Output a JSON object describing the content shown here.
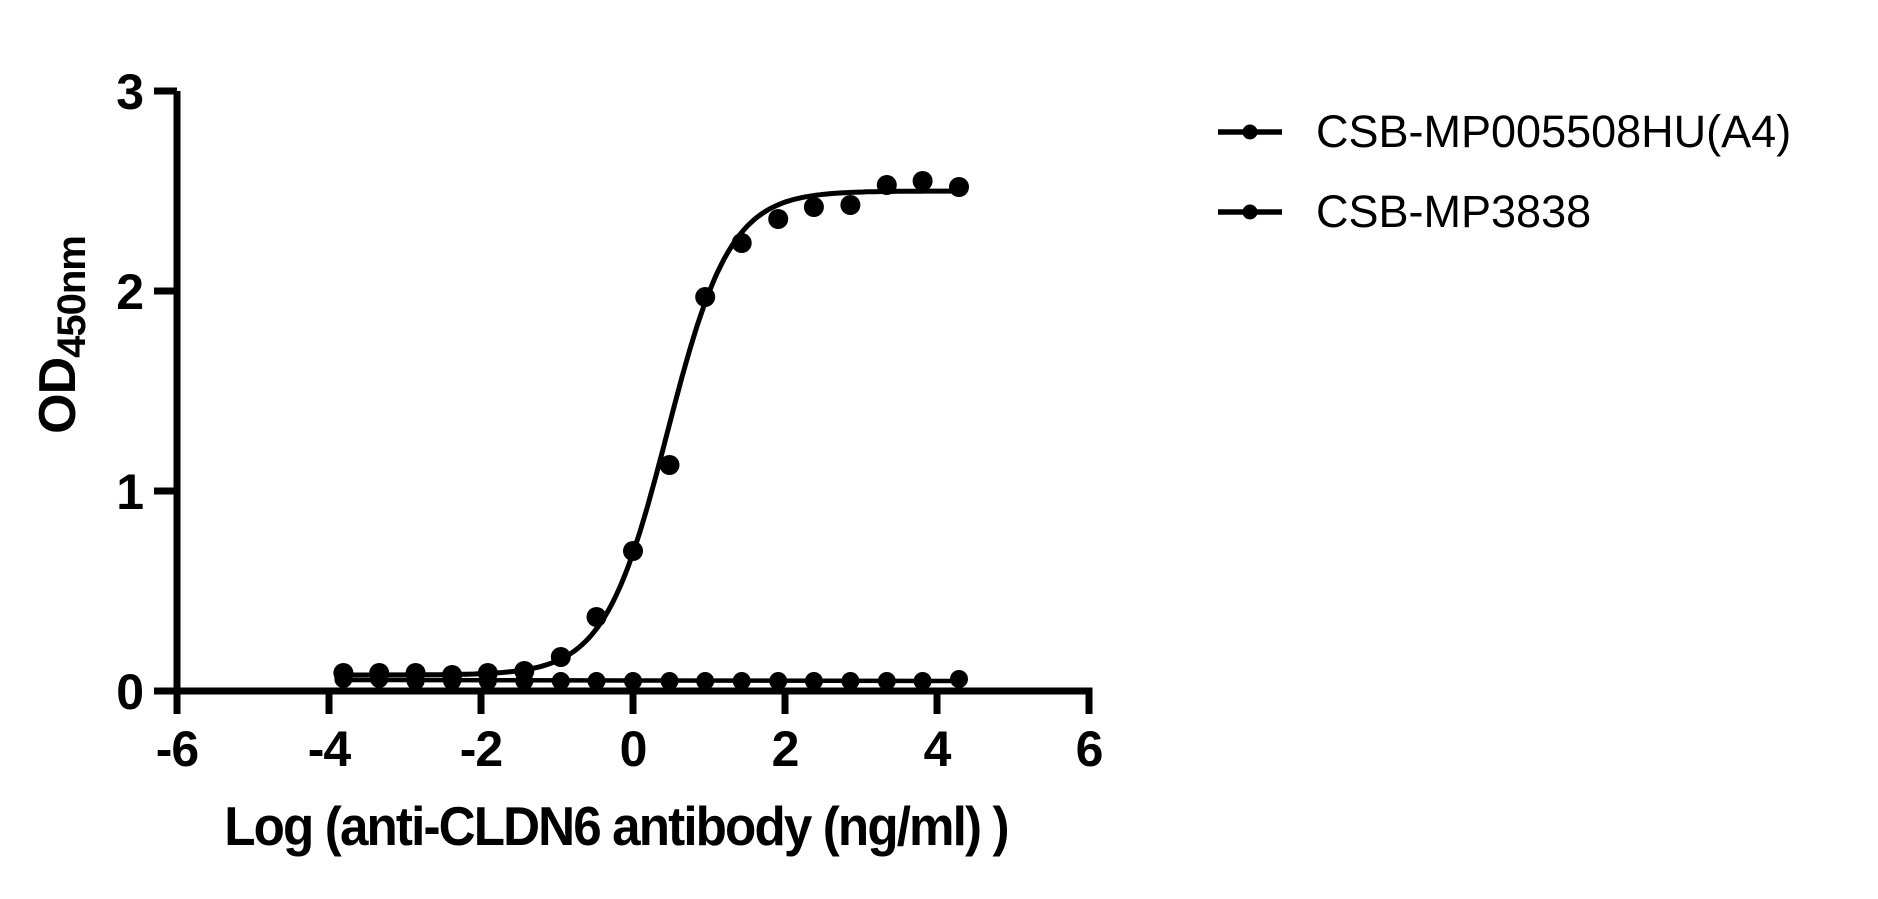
{
  "figure": {
    "background_color": "#ffffff",
    "ink_color": "#000000"
  },
  "chart_data": {
    "type": "scatter",
    "title": "",
    "xlabel": "Log (anti-CLDN6 antibody (ng/ml) )",
    "ylabel": "OD",
    "ylabel_subscript": "450nm",
    "xlim": [
      -6,
      6
    ],
    "ylim": [
      0,
      3
    ],
    "x_ticks": [
      "-6",
      "-4",
      "-2",
      "0",
      "2",
      "4",
      "6"
    ],
    "y_ticks": [
      "0",
      "1",
      "2",
      "3"
    ],
    "grid": false,
    "legend_position": "outside-top-right",
    "series": [
      {
        "name": "CSB-MP005508HU(A4)",
        "color": "#000000",
        "marker": "filled-circle",
        "x": [
          -3.81,
          -3.34,
          -2.86,
          -2.38,
          -1.91,
          -1.43,
          -0.95,
          -0.48,
          0.0,
          0.48,
          0.95,
          1.43,
          1.91,
          2.38,
          2.86,
          3.34,
          3.81,
          4.29
        ],
        "y": [
          0.09,
          0.09,
          0.09,
          0.08,
          0.09,
          0.1,
          0.17,
          0.37,
          0.7,
          1.13,
          1.97,
          2.24,
          2.36,
          2.42,
          2.43,
          2.53,
          2.55,
          2.52
        ],
        "fit_curve": {
          "type": "4PL",
          "bottom": 0.08,
          "top": 2.5,
          "logEC50": 0.45,
          "hill": 1.05,
          "x_range": [
            -3.81,
            4.29
          ]
        }
      },
      {
        "name": "CSB-MP3838",
        "color": "#000000",
        "marker": "filled-circle",
        "x": [
          -3.81,
          -3.34,
          -2.86,
          -2.38,
          -1.91,
          -1.43,
          -0.95,
          -0.48,
          0.0,
          0.48,
          0.95,
          1.43,
          1.91,
          2.38,
          2.86,
          3.34,
          3.81,
          4.29
        ],
        "y": [
          0.06,
          0.06,
          0.05,
          0.05,
          0.05,
          0.05,
          0.05,
          0.05,
          0.05,
          0.05,
          0.05,
          0.05,
          0.05,
          0.05,
          0.05,
          0.05,
          0.05,
          0.06
        ],
        "fit_curve": {
          "type": "linear",
          "y_start": 0.055,
          "y_end": 0.05,
          "x_range": [
            -3.81,
            4.29
          ]
        }
      }
    ]
  }
}
